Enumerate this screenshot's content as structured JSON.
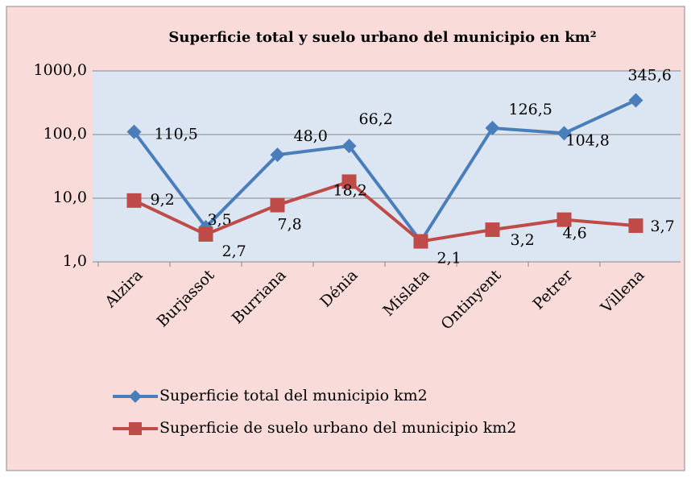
{
  "chart_data": {
    "type": "line",
    "title": "Superficie total y suelo urbano del municipio en km²",
    "categories": [
      "Alzira",
      "Burjassot",
      "Burriana",
      "Dénia",
      "Mislata",
      "Ontinyent",
      "Petrer",
      "Villena"
    ],
    "series": [
      {
        "name": "Superficie total del municipio km2",
        "color": "#4a7ebb",
        "marker": "diamond",
        "values": [
          110.5,
          3.5,
          48.0,
          66.2,
          2.1,
          126.5,
          104.8,
          345.6
        ],
        "value_labels": [
          "110,5",
          "3,5",
          "48,0",
          "66,2",
          null,
          "126,5",
          "104,8",
          "345,6"
        ]
      },
      {
        "name": "Superficie de suelo urbano del municipio km2",
        "color": "#be4b48",
        "marker": "square",
        "values": [
          9.2,
          2.7,
          7.8,
          18.2,
          2.1,
          3.2,
          4.6,
          3.7
        ],
        "value_labels": [
          "9,2",
          "2,7",
          "7,8",
          "18,2",
          "2,1",
          "3,2",
          "4,6",
          "3,7"
        ]
      }
    ],
    "ylim": [
      1,
      1000
    ],
    "log_scale": true,
    "yticks": [
      {
        "value": 1,
        "label": "1,0"
      },
      {
        "value": 10,
        "label": "10,0"
      },
      {
        "value": 100,
        "label": "100,0"
      },
      {
        "value": 1000,
        "label": "1000,0"
      }
    ],
    "grid": true,
    "legend": "bottom"
  }
}
